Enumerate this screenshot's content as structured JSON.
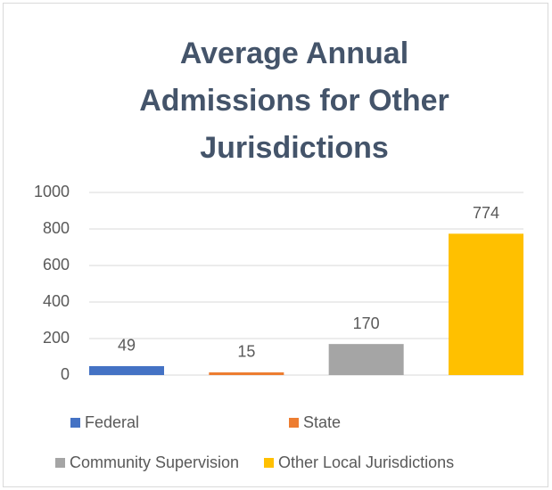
{
  "chart_data": {
    "type": "bar",
    "title": "Average Annual Admissions for Other Jurisdictions",
    "categories": [
      "Federal",
      "State",
      "Community Supervision",
      "Other Local Jurisdictions"
    ],
    "values": [
      49,
      15,
      170,
      774
    ],
    "colors": [
      "#4472c4",
      "#ed7d31",
      "#a5a5a5",
      "#ffc000"
    ],
    "ylim": [
      0,
      1000
    ],
    "yticks": [
      0,
      200,
      400,
      600,
      800,
      1000
    ],
    "grid": true,
    "legend": "bottom"
  }
}
